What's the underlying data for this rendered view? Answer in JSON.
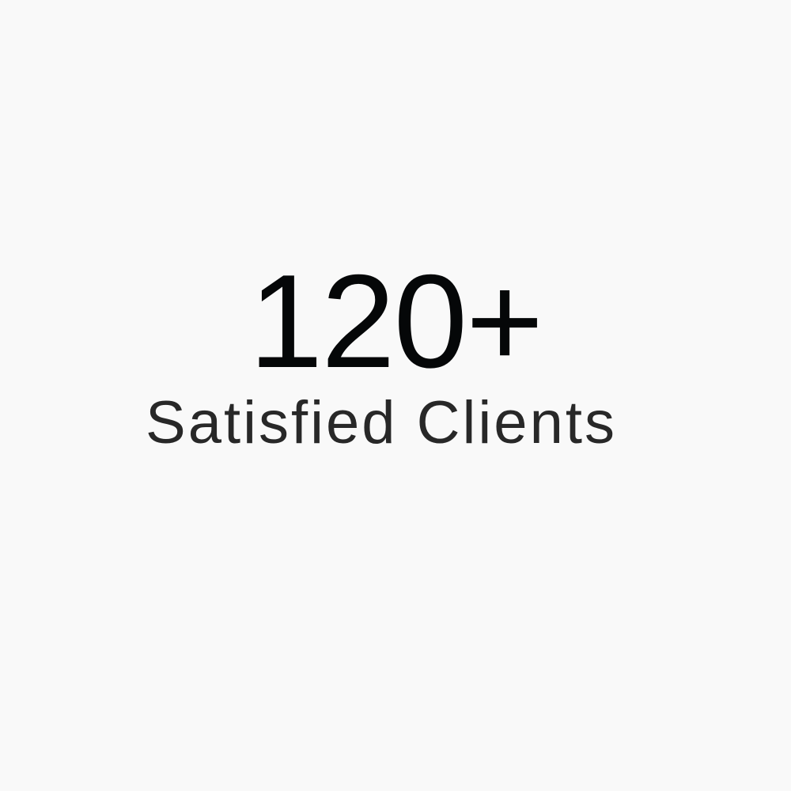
{
  "stat": {
    "number": "120+",
    "label": "Satisfied Clients"
  },
  "colors": {
    "background": "#f9f9f9",
    "number": "#050708",
    "label": "#282828"
  }
}
